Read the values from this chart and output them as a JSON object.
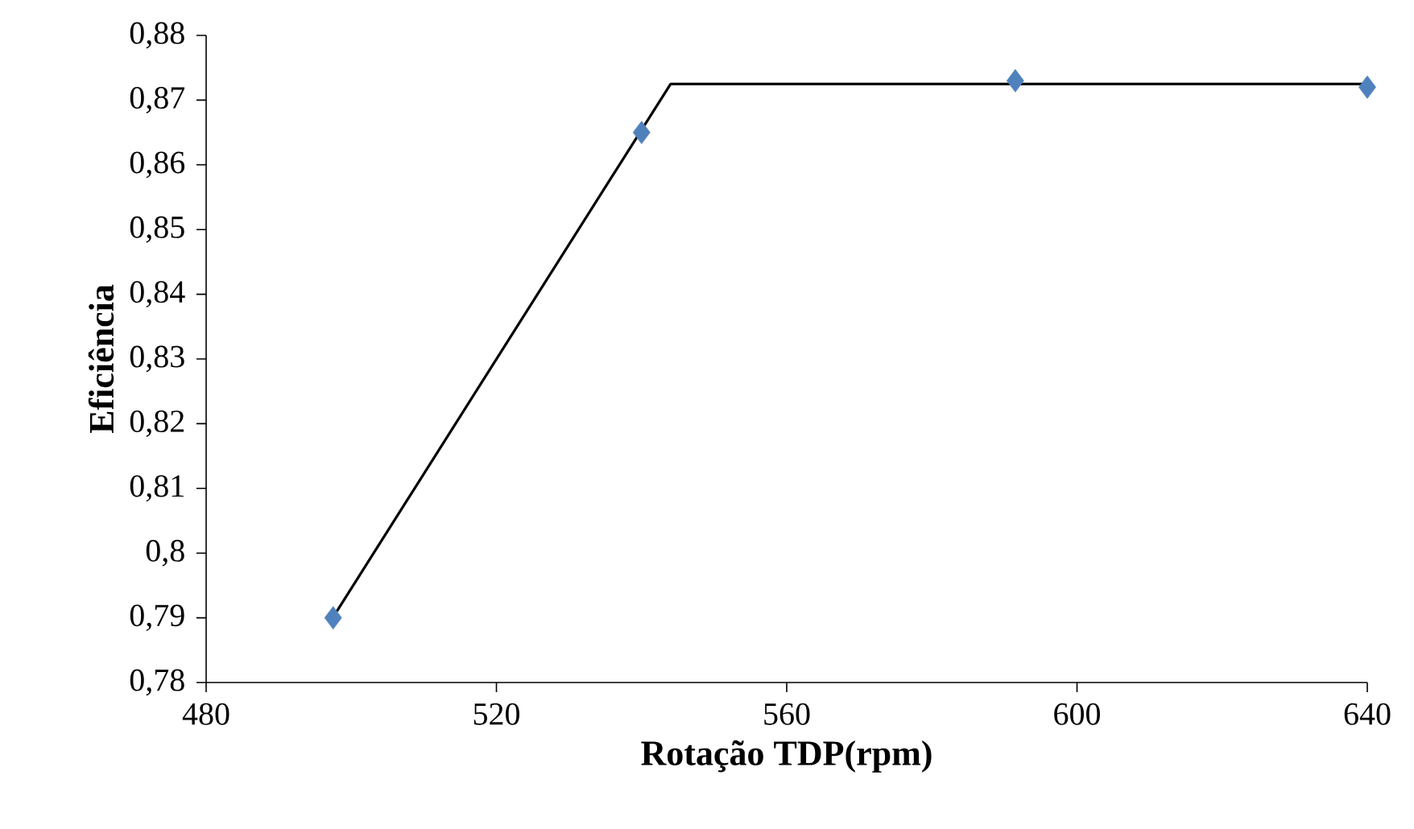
{
  "chart_data": {
    "type": "scatter",
    "xlabel": "Rotação TDP(rpm)",
    "ylabel": "Eficiência",
    "xlim": [
      480,
      640
    ],
    "ylim": [
      0.78,
      0.88
    ],
    "xticks": [
      480,
      520,
      560,
      600,
      640
    ],
    "yticks": [
      {
        "value": 0.78,
        "label": "0,78"
      },
      {
        "value": 0.79,
        "label": "0,79"
      },
      {
        "value": 0.8,
        "label": "0,8"
      },
      {
        "value": 0.81,
        "label": "0,81"
      },
      {
        "value": 0.82,
        "label": "0,82"
      },
      {
        "value": 0.83,
        "label": "0,83"
      },
      {
        "value": 0.84,
        "label": "0,84"
      },
      {
        "value": 0.85,
        "label": "0,85"
      },
      {
        "value": 0.86,
        "label": "0,86"
      },
      {
        "value": 0.87,
        "label": "0,87"
      },
      {
        "value": 0.88,
        "label": "0,88"
      }
    ],
    "marker": "diamond",
    "series": [
      {
        "type": "line",
        "color": "#000000",
        "marker": "none",
        "x": [
          498,
          544,
          640
        ],
        "values": [
          0.791,
          0.8725,
          0.8725
        ]
      },
      {
        "color": "#4f81bd",
        "x": [
          497.5,
          540,
          591.5,
          640
        ],
        "values": [
          0.79,
          0.865,
          0.873,
          0.872
        ]
      }
    ]
  }
}
